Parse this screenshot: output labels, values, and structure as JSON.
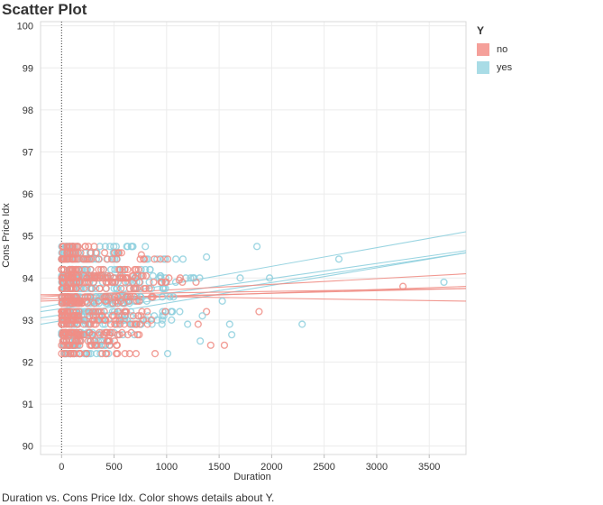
{
  "title": "Scatter Plot",
  "caption": "Duration vs. Cons Price Idx.  Color shows details about Y.",
  "legend": {
    "title": "Y",
    "items": [
      {
        "label": "no",
        "color": "#f5a09a"
      },
      {
        "label": "yes",
        "color": "#a9dce6"
      }
    ]
  },
  "chart_data": {
    "type": "scatter",
    "xlabel": "Duration",
    "ylabel": "Cons Price Idx",
    "xlim": [
      -200,
      3850
    ],
    "ylim": [
      89.8,
      100.1
    ],
    "xticks": [
      0,
      500,
      1000,
      1500,
      2000,
      2500,
      3000,
      3500
    ],
    "yticks": [
      90,
      91,
      92,
      93,
      94,
      95,
      96,
      97,
      98,
      99,
      100
    ],
    "grid": true,
    "legend_position": "top-right",
    "zero_line": 0,
    "price_levels": [
      92.2,
      92.4,
      92.5,
      92.65,
      92.7,
      92.9,
      93.0,
      93.1,
      93.2,
      93.4,
      93.45,
      93.55,
      93.75,
      93.9,
      94.0,
      94.05,
      94.2,
      94.45,
      94.6,
      94.75
    ],
    "series": [
      {
        "name": "no",
        "color": "#f08e86",
        "dense_max": [
          720,
          560,
          520,
          820,
          700,
          860,
          950,
          900,
          990,
          640,
          820,
          980,
          840,
          1050,
          1180,
          880,
          820,
          1000,
          600,
          380
        ],
        "x": [
          1150,
          1280,
          1380,
          1550,
          1420,
          1880,
          3250,
          1300,
          1010,
          890,
          1120,
          760,
          990
        ],
        "y": [
          93.9,
          93.9,
          93.2,
          92.4,
          92.4,
          93.2,
          93.8,
          92.9,
          94.45,
          92.2,
          93.95,
          94.55,
          93.2
        ]
      },
      {
        "name": "yes",
        "color": "#8fd0de",
        "dense_max": [
          450,
          520,
          480,
          760,
          540,
          960,
          1100,
          1000,
          1170,
          700,
          950,
          1080,
          1000,
          1250,
          1400,
          1000,
          900,
          1200,
          700,
          800
        ],
        "x": [
          1860,
          2640,
          3640,
          2290,
          1620,
          1600,
          1380,
          1340,
          1320,
          1200,
          1250,
          1010,
          1980,
          1530,
          1700
        ],
        "y": [
          94.75,
          94.45,
          93.9,
          92.9,
          92.65,
          92.9,
          94.5,
          93.1,
          92.5,
          92.9,
          94.0,
          92.2,
          94.0,
          93.45,
          94.0
        ]
      }
    ],
    "trend_lines": [
      {
        "series": "yes",
        "x": [
          -200,
          3850
        ],
        "y": [
          93.3,
          95.1
        ]
      },
      {
        "series": "yes",
        "x": [
          -200,
          3850
        ],
        "y": [
          93.2,
          94.65
        ]
      },
      {
        "series": "yes",
        "x": [
          -200,
          3850
        ],
        "y": [
          93.05,
          94.6
        ]
      },
      {
        "series": "yes",
        "x": [
          -200,
          3850
        ],
        "y": [
          92.9,
          94.6
        ]
      },
      {
        "series": "no",
        "x": [
          -200,
          3850
        ],
        "y": [
          93.55,
          94.1
        ]
      },
      {
        "series": "no",
        "x": [
          -200,
          3850
        ],
        "y": [
          93.45,
          93.8
        ]
      },
      {
        "series": "no",
        "x": [
          -200,
          3850
        ],
        "y": [
          93.6,
          93.75
        ]
      },
      {
        "series": "no",
        "x": [
          -200,
          3850
        ],
        "y": [
          93.6,
          93.45
        ]
      },
      {
        "series": "no",
        "x": [
          -200,
          3850
        ],
        "y": [
          93.5,
          93.75
        ]
      }
    ]
  }
}
